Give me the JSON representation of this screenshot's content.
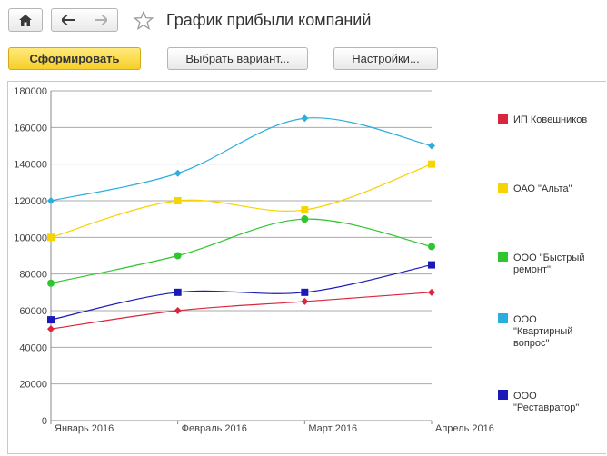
{
  "header": {
    "title": "График прибыли компаний"
  },
  "toolbar": {
    "generate_label": "Сформировать",
    "variant_label": "Выбрать вариант...",
    "settings_label": "Настройки..."
  },
  "icons": {
    "home": "home-icon",
    "back": "arrow-left-icon",
    "forward": "arrow-right-icon",
    "favorite": "star-icon"
  },
  "chart_data": {
    "type": "line",
    "categories": [
      "Январь 2016",
      "Февраль 2016",
      "Март 2016",
      "Апрель 2016"
    ],
    "yticks": [
      "0",
      "20000",
      "40000",
      "60000",
      "80000",
      "100000",
      "120000",
      "140000",
      "160000",
      "180000"
    ],
    "ylim": [
      0,
      180000
    ],
    "grid": true,
    "legend_position": "right",
    "series": [
      {
        "name": "ИП Ковешников",
        "legend_lines": [
          "ИП Ковешников"
        ],
        "color": "#d9263d",
        "marker": "diamond",
        "values": [
          50000,
          60000,
          65000,
          70000
        ]
      },
      {
        "name": "ОАО \"Альта\"",
        "legend_lines": [
          "ОАО \"Альта\""
        ],
        "color": "#f5d400",
        "marker": "square",
        "values": [
          100000,
          120000,
          115000,
          140000
        ]
      },
      {
        "name": "ООО \"Быстрый ремонт\"",
        "legend_lines": [
          "ООО \"Быстрый",
          "ремонт\""
        ],
        "color": "#2ec52e",
        "marker": "circle",
        "values": [
          75000,
          90000,
          110000,
          95000
        ]
      },
      {
        "name": "ООО \"Квартирный вопрос\"",
        "legend_lines": [
          "ООО",
          "\"Квартирный",
          "вопрос\""
        ],
        "color": "#2aaedc",
        "marker": "diamond",
        "values": [
          120000,
          135000,
          165000,
          150000
        ]
      },
      {
        "name": "ООО \"Реставратор\"",
        "legend_lines": [
          "ООО",
          "\"Реставратор\""
        ],
        "color": "#1a1ab8",
        "marker": "square",
        "values": [
          55000,
          70000,
          70000,
          85000
        ]
      }
    ]
  }
}
